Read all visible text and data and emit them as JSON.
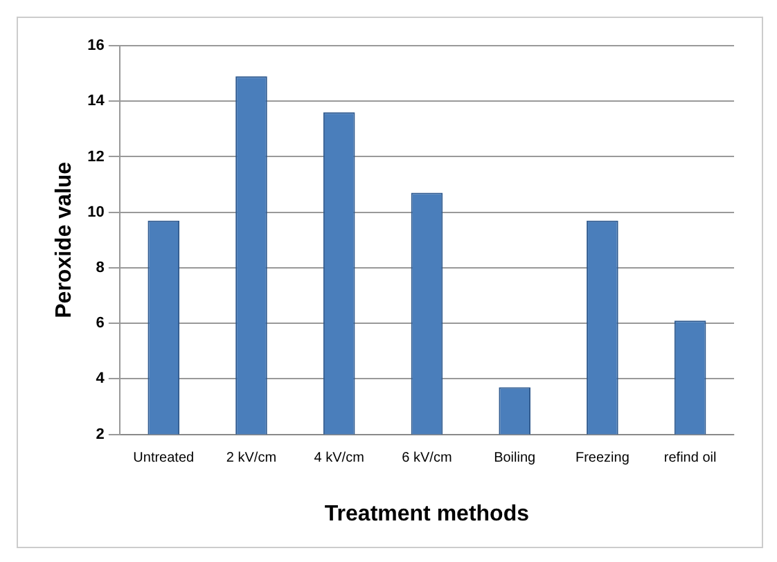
{
  "chart_data": {
    "type": "bar",
    "xlabel": "Treatment methods",
    "ylabel": "Peroxide value",
    "categories": [
      "Untreated",
      "2 kV/cm",
      "4 kV/cm",
      "6 kV/cm",
      "Boiling",
      "Freezing",
      "refind oil"
    ],
    "values": [
      9.7,
      14.9,
      13.6,
      10.7,
      3.7,
      9.7,
      6.1
    ],
    "color": "#4a7ebb",
    "ylim": [
      2,
      16
    ],
    "yticks": [
      2,
      4,
      6,
      8,
      10,
      12,
      14,
      16
    ],
    "grid": "y"
  }
}
